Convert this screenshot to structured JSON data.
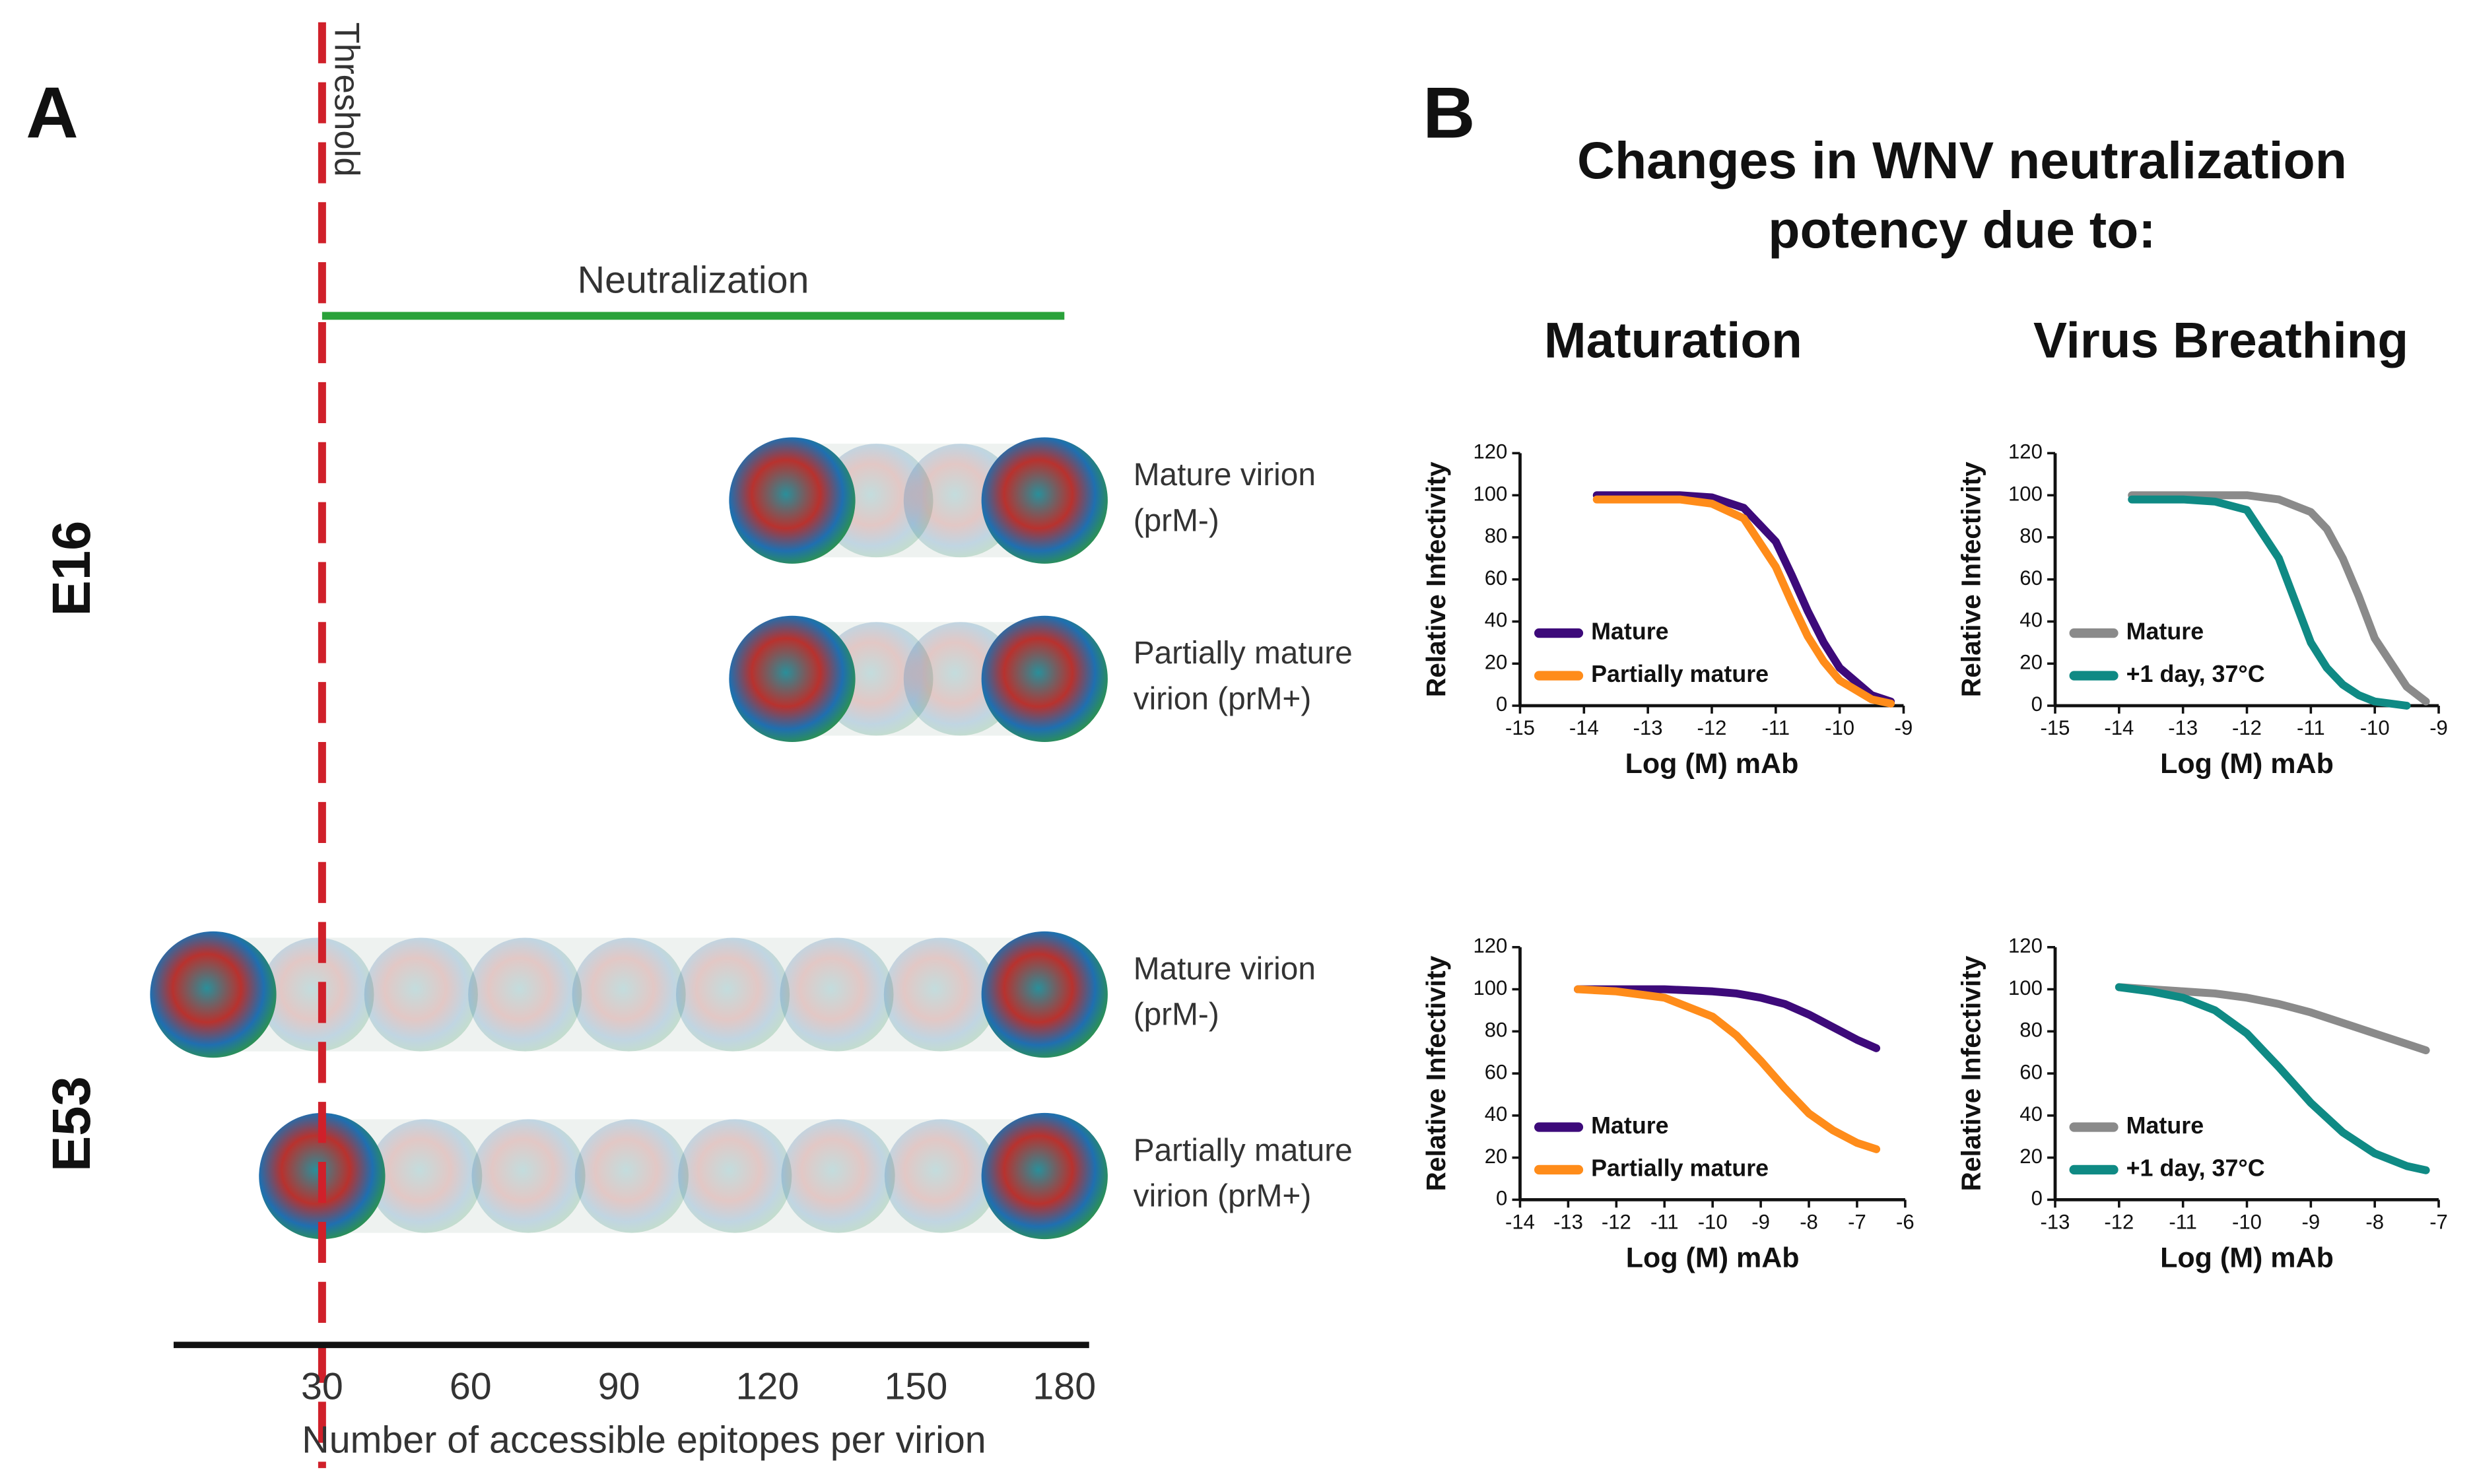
{
  "panel_a": {
    "label": "A",
    "threshold_label": "Threshold",
    "threshold": 30,
    "neutralization_label": "Neutralization",
    "neutralization": [
      30,
      180
    ],
    "xlim": [
      0,
      185
    ],
    "xticks": [
      30,
      60,
      90,
      120,
      150,
      180
    ],
    "xlabel": "Number of accessible epitopes per virion",
    "groups": [
      {
        "name": "E16",
        "rows": [
          {
            "label": [
              "Mature virion",
              "(prM-)"
            ],
            "extent": [
              125,
              176
            ]
          },
          {
            "label": [
              "Partially  mature",
              "virion  (prM+)"
            ],
            "extent": [
              125,
              176
            ]
          }
        ]
      },
      {
        "name": "E53",
        "rows": [
          {
            "label": [
              "Mature virion",
              "(prM-)"
            ],
            "extent": [
              8,
              176
            ]
          },
          {
            "label": [
              "Partially  mature",
              "virion  (prM+)"
            ],
            "extent": [
              30,
              176
            ]
          }
        ]
      }
    ]
  },
  "panel_b": {
    "label": "B",
    "heading": [
      "Changes in WNV neutralization",
      "potency due to:"
    ],
    "columns": [
      "Maturation",
      "Virus Breathing"
    ]
  },
  "chart_data": [
    {
      "type": "line",
      "xlabel": "Log (M) mAb",
      "ylabel": "Relative Infectivity",
      "x": [
        -13.8,
        -13,
        -12.5,
        -12,
        -11.5,
        -11,
        -10.75,
        -10.5,
        -10.25,
        -10,
        -9.5,
        -9.2
      ],
      "series": [
        {
          "name": "Mature",
          "color": "#3d0a7a",
          "values": [
            100,
            100,
            100,
            99,
            94,
            78,
            62,
            45,
            30,
            18,
            5,
            2
          ]
        },
        {
          "name": "Partially mature",
          "color": "#ff8c1a",
          "values": [
            98,
            98,
            98,
            96,
            89,
            66,
            49,
            33,
            21,
            12,
            3,
            1
          ]
        }
      ],
      "xlim": [
        -15,
        -9
      ],
      "xticks": [
        -15,
        -14,
        -13,
        -12,
        -11,
        -10,
        -9
      ],
      "ylim": [
        0,
        120
      ],
      "yticks": [
        0,
        20,
        40,
        60,
        80,
        100,
        120
      ],
      "legend": "lower left"
    },
    {
      "type": "line",
      "xlabel": "Log (M) mAb",
      "ylabel": "Relative Infectivity",
      "x": [
        -13.8,
        -13,
        -12.5,
        -12,
        -11.5,
        -11,
        -10.75,
        -10.5,
        -10.25,
        -10,
        -9.5,
        -9.2
      ],
      "series": [
        {
          "name": "Mature",
          "color": "#8a8a8a",
          "values": [
            100,
            100,
            100,
            100,
            98,
            92,
            84,
            70,
            52,
            32,
            9,
            2
          ]
        },
        {
          "name": "+1 day, 37°C",
          "color": "#0f8a84",
          "values": [
            98,
            98,
            97,
            93,
            70,
            30,
            18,
            10,
            5,
            2,
            0,
            null
          ]
        }
      ],
      "xlim": [
        -15,
        -9
      ],
      "xticks": [
        -15,
        -14,
        -13,
        -12,
        -11,
        -10,
        -9
      ],
      "ylim": [
        0,
        120
      ],
      "yticks": [
        0,
        20,
        40,
        60,
        80,
        100,
        120
      ],
      "legend": "lower left"
    },
    {
      "type": "line",
      "xlabel": "Log (M) mAb",
      "ylabel": "Relative Infectivity",
      "x": [
        -12.8,
        -12,
        -11,
        -10,
        -9.5,
        -9,
        -8.5,
        -8,
        -7.5,
        -7,
        -6.6
      ],
      "series": [
        {
          "name": "Mature",
          "color": "#3d0a7a",
          "values": [
            100,
            100,
            100,
            99,
            98,
            96,
            93,
            88,
            82,
            76,
            72
          ]
        },
        {
          "name": "Partially mature",
          "color": "#ff8c1a",
          "values": [
            100,
            99,
            96,
            87,
            78,
            66,
            53,
            41,
            33,
            27,
            24
          ]
        }
      ],
      "xlim": [
        -14,
        -6
      ],
      "xticks": [
        -14,
        -13,
        -12,
        -11,
        -10,
        -9,
        -8,
        -7,
        -6
      ],
      "ylim": [
        0,
        120
      ],
      "yticks": [
        0,
        20,
        40,
        60,
        80,
        100,
        120
      ],
      "legend": "lower left"
    },
    {
      "type": "line",
      "xlabel": "Log (M) mAb",
      "ylabel": "Relative Infectivity",
      "x": [
        -12,
        -11.5,
        -11,
        -10.5,
        -10,
        -9.5,
        -9,
        -8.5,
        -8,
        -7.5,
        -7.2
      ],
      "series": [
        {
          "name": "Mature",
          "color": "#8a8a8a",
          "values": [
            101,
            100,
            99,
            98,
            96,
            93,
            89,
            84,
            79,
            74,
            71
          ]
        },
        {
          "name": "+1 day, 37°C",
          "color": "#0f8a84",
          "values": [
            101,
            99,
            96,
            90,
            79,
            63,
            46,
            32,
            22,
            16,
            14
          ]
        }
      ],
      "xlim": [
        -13,
        -7
      ],
      "xticks": [
        -13,
        -12,
        -11,
        -10,
        -9,
        -8,
        -7
      ],
      "ylim": [
        0,
        120
      ],
      "yticks": [
        0,
        20,
        40,
        60,
        80,
        100,
        120
      ],
      "legend": "lower left"
    }
  ]
}
